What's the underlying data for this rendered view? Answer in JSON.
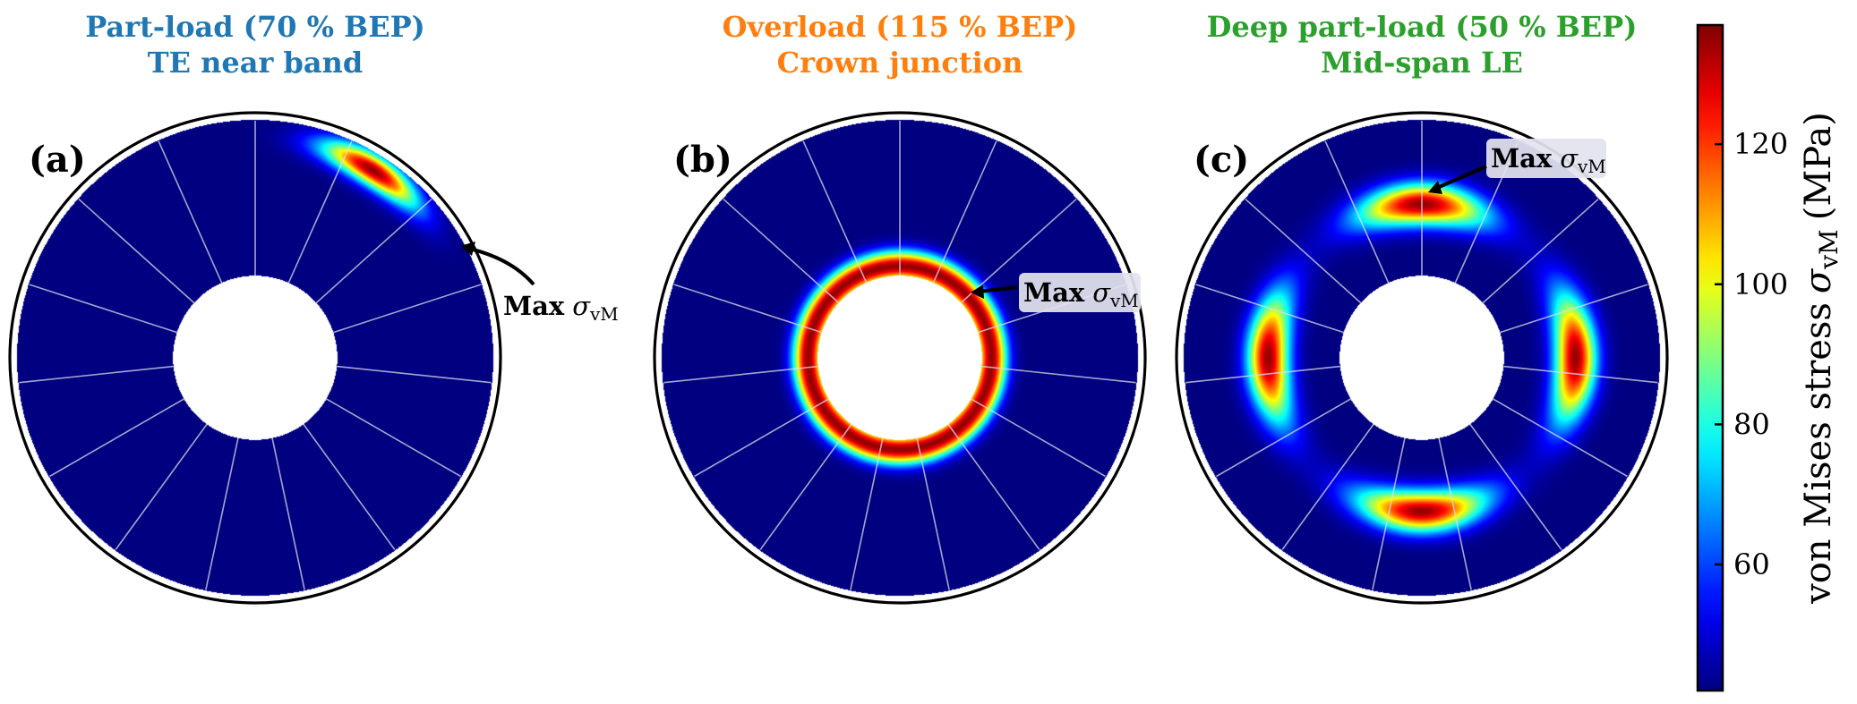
{
  "chart_data": {
    "type": "heatmap",
    "panels": [
      {
        "id": "a",
        "label": "(a)",
        "title_line1": "Part-load (70 % BEP)",
        "title_line2": "TE near band",
        "title_color": "#1f77b4",
        "hotspots": [
          {
            "r_frac": 0.93,
            "angle_deg": 58,
            "sig_r": 0.045,
            "sig_t_deg": 10,
            "peak": 135
          }
        ],
        "annotation": {
          "bold": "Max",
          "symbol": "σ",
          "sub": "vM",
          "boxed": false
        }
      },
      {
        "id": "b",
        "label": "(b)",
        "title_line1": "Overload (115 % BEP)",
        "title_line2": "Crown junction",
        "title_color": "#ff7f0e",
        "ring": {
          "r_frac": 0.385,
          "sig_r": 0.045,
          "peak": 135
        },
        "annotation": {
          "bold": "Max",
          "symbol": "σ",
          "sub": "vM",
          "boxed": true
        }
      },
      {
        "id": "c",
        "label": "(c)",
        "title_line1": "Deep part-load (50 % BEP)",
        "title_line2": "Mid-span LE",
        "title_color": "#2ca02c",
        "hotspots": [
          {
            "r_frac": 0.645,
            "angle_deg": 90,
            "sig_r": 0.06,
            "sig_t_deg": 17,
            "peak": 135
          },
          {
            "r_frac": 0.645,
            "angle_deg": 180,
            "sig_r": 0.06,
            "sig_t_deg": 17,
            "peak": 135
          },
          {
            "r_frac": 0.645,
            "angle_deg": 270,
            "sig_r": 0.06,
            "sig_t_deg": 17,
            "peak": 135
          },
          {
            "r_frac": 0.645,
            "angle_deg": 0,
            "sig_r": 0.06,
            "sig_t_deg": 17,
            "peak": 135
          }
        ],
        "annotation": {
          "bold": "Max",
          "symbol": "σ",
          "sub": "vM",
          "boxed": true
        }
      }
    ],
    "blade_count": 15,
    "hub_ratio": 0.345,
    "colorbar": {
      "label_prefix": "von Mises stress",
      "label_symbol": "σ",
      "label_sub": "vM",
      "label_unit": "(MPa)",
      "min": 42,
      "max": 137,
      "ticks": [
        60,
        80,
        100,
        120
      ],
      "colormap": "jet"
    }
  }
}
